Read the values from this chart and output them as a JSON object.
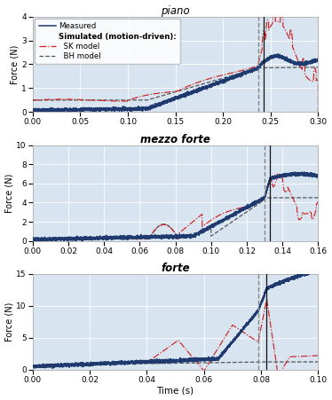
{
  "panels": [
    {
      "title": "piano",
      "xlim": [
        0,
        0.3
      ],
      "ylim": [
        0,
        4
      ],
      "xticks": [
        0,
        0.05,
        0.1,
        0.15,
        0.2,
        0.25,
        0.3
      ],
      "yticks": [
        0,
        1,
        2,
        3,
        4
      ],
      "vline_gray": 0.237,
      "vline_black": 0.243
    },
    {
      "title": "mezzo forte",
      "xlim": [
        0,
        0.16
      ],
      "ylim": [
        0,
        10
      ],
      "xticks": [
        0,
        0.02,
        0.04,
        0.06,
        0.08,
        0.1,
        0.12,
        0.14,
        0.16
      ],
      "yticks": [
        0,
        2,
        4,
        6,
        8,
        10
      ],
      "vline_gray": 0.13,
      "vline_black": 0.133
    },
    {
      "title": "forte",
      "xlim": [
        0,
        0.1
      ],
      "ylim": [
        0,
        15
      ],
      "xticks": [
        0,
        0.02,
        0.04,
        0.06,
        0.08,
        0.1
      ],
      "yticks": [
        0,
        5,
        10,
        15
      ],
      "vline_gray": 0.079,
      "vline_black": 0.082
    }
  ],
  "measured_color": "#1f3a6e",
  "sk_color": "#cc2222",
  "bh_color": "#555555",
  "bg_color": "#d8e4f0",
  "ylabel": "Force (N)",
  "xlabel": "Time (s)"
}
